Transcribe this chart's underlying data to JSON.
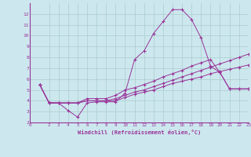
{
  "xlabel": "Windchill (Refroidissement éolien,°C)",
  "xlim": [
    0,
    23
  ],
  "ylim": [
    2,
    13
  ],
  "yticks": [
    2,
    3,
    4,
    5,
    6,
    7,
    8,
    9,
    10,
    11,
    12
  ],
  "xticks": [
    0,
    2,
    3,
    4,
    5,
    6,
    7,
    8,
    9,
    10,
    11,
    12,
    13,
    14,
    15,
    16,
    17,
    18,
    19,
    20,
    21,
    22,
    23
  ],
  "bg_color": "#cce8ee",
  "line_color": "#993399",
  "grid_color": "#aacccc",
  "series": [
    {
      "x": [
        1,
        2,
        3,
        4,
        5,
        6,
        7,
        8,
        9,
        10,
        11,
        12,
        13,
        14,
        15,
        16,
        17,
        18,
        19,
        20,
        21,
        22,
        23
      ],
      "y": [
        5.5,
        3.8,
        3.8,
        3.1,
        2.5,
        3.8,
        3.9,
        3.9,
        3.9,
        4.7,
        7.8,
        8.6,
        10.2,
        11.3,
        12.4,
        12.4,
        11.5,
        9.8,
        7.2,
        6.6,
        5.1,
        5.1,
        5.1
      ]
    },
    {
      "x": [
        1,
        2,
        3,
        4,
        5,
        6,
        7,
        8,
        9,
        10,
        11,
        12,
        13,
        14,
        15,
        16,
        17,
        18,
        19,
        20,
        21,
        22,
        23
      ],
      "y": [
        5.5,
        3.8,
        3.8,
        3.8,
        3.8,
        4.2,
        4.2,
        4.2,
        4.5,
        5.0,
        5.2,
        5.5,
        5.8,
        6.2,
        6.5,
        6.8,
        7.2,
        7.5,
        7.8,
        6.6,
        5.1,
        5.1,
        5.1
      ]
    },
    {
      "x": [
        1,
        2,
        3,
        4,
        5,
        6,
        7,
        8,
        9,
        10,
        11,
        12,
        13,
        14,
        15,
        16,
        17,
        18,
        19,
        20,
        21,
        22,
        23
      ],
      "y": [
        5.5,
        3.8,
        3.8,
        3.8,
        3.8,
        4.0,
        4.0,
        4.0,
        4.2,
        4.5,
        4.8,
        5.0,
        5.3,
        5.6,
        5.9,
        6.2,
        6.5,
        6.8,
        7.1,
        7.4,
        7.7,
        8.0,
        8.3
      ]
    },
    {
      "x": [
        1,
        2,
        3,
        4,
        5,
        6,
        7,
        8,
        9,
        10,
        11,
        12,
        13,
        14,
        15,
        16,
        17,
        18,
        19,
        20,
        21,
        22,
        23
      ],
      "y": [
        5.5,
        3.8,
        3.8,
        3.8,
        3.8,
        4.0,
        4.0,
        4.0,
        4.0,
        4.3,
        4.6,
        4.8,
        5.0,
        5.3,
        5.6,
        5.8,
        6.0,
        6.2,
        6.5,
        6.7,
        6.9,
        7.1,
        7.3
      ]
    }
  ]
}
